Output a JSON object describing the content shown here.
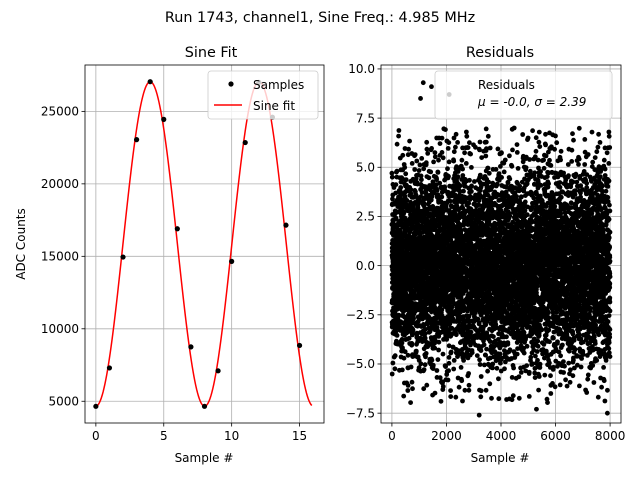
{
  "suptitle": "Run 1743, channel1, Sine Freq.: 4.985 MHz",
  "chart_data": [
    {
      "type": "line",
      "title": "Sine Fit",
      "xlabel": "Sample #",
      "ylabel": "ADC Counts",
      "xlim": [
        -0.8,
        16.8
      ],
      "ylim": [
        3500,
        28200
      ],
      "xticks": [
        0,
        5,
        10,
        15
      ],
      "yticks": [
        5000,
        10000,
        15000,
        20000,
        25000
      ],
      "ytick_labels": [
        "5000",
        "10000",
        "15000",
        "20000",
        "25000"
      ],
      "grid": true,
      "legend_position": "top-right",
      "series": [
        {
          "name": "Samples",
          "style": "scatter",
          "color": "#000000",
          "x": [
            0,
            1,
            2,
            3,
            4,
            5,
            6,
            7,
            8,
            9,
            10,
            11,
            12,
            13,
            14,
            15
          ],
          "y": [
            4650,
            7300,
            14950,
            23050,
            27050,
            24450,
            16900,
            8750,
            4650,
            7100,
            14650,
            22850,
            27000,
            24600,
            17150,
            8850
          ]
        },
        {
          "name": "Sine fit",
          "style": "line",
          "color": "#ff0000",
          "function": {
            "offset": 15850,
            "amplitude": 11200,
            "period": 8.02,
            "phase_peak_x": 4.0
          },
          "x_range": [
            0,
            15.9
          ]
        }
      ]
    },
    {
      "type": "scatter",
      "title": "Residuals",
      "xlabel": "Sample #",
      "ylabel": "",
      "xlim": [
        -400,
        8400
      ],
      "ylim": [
        -8.0,
        10.2
      ],
      "xticks": [
        0,
        2000,
        4000,
        6000,
        8000
      ],
      "yticks": [
        -7.5,
        -5.0,
        -2.5,
        0.0,
        2.5,
        5.0,
        7.5,
        10.0
      ],
      "ytick_labels": [
        "−7.5",
        "−5.0",
        "−2.5",
        "0.0",
        "2.5",
        "5.0",
        "7.5",
        "10.0"
      ],
      "grid": true,
      "legend_position": "top-right",
      "series": [
        {
          "name": "Residuals",
          "color": "#000000",
          "n_points": 8000,
          "mean": -0.0,
          "sigma": 2.39,
          "outliers": [
            [
              1150,
              9.3
            ],
            [
              1450,
              9.1
            ],
            [
              1050,
              8.5
            ],
            [
              2100,
              8.7
            ],
            [
              3200,
              -7.6
            ],
            [
              5300,
              -7.3
            ],
            [
              7900,
              -7.5
            ],
            [
              1800,
              -6.9
            ]
          ]
        }
      ],
      "legend_stats_label": "μ = -0.0, σ = 2.39"
    }
  ]
}
